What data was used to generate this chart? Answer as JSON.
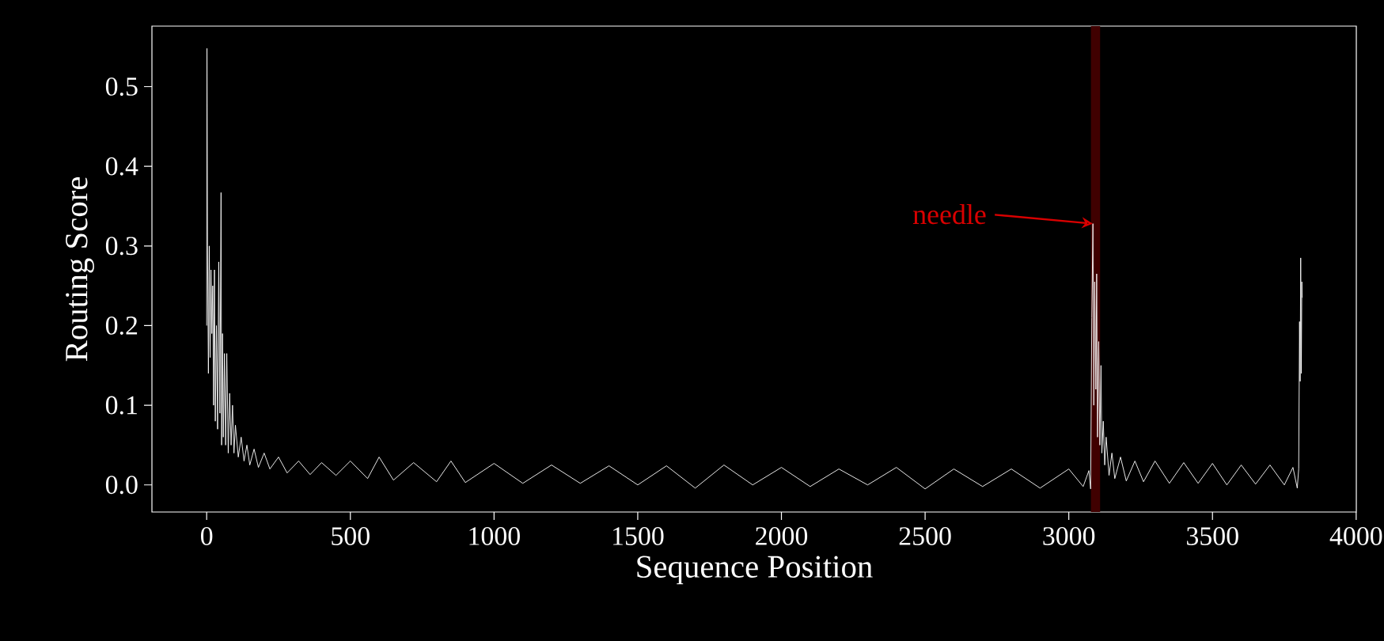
{
  "chart_data": {
    "type": "line",
    "xlabel": "Sequence Position",
    "ylabel": "Routing Score",
    "xlim": [
      -190.5,
      4000.5
    ],
    "ylim": [
      -0.034,
      0.576
    ],
    "xticks": [
      0,
      500,
      1000,
      1500,
      2000,
      2500,
      3000,
      3500,
      4000
    ],
    "yticks": [
      {
        "value": 0,
        "label": "0.0"
      },
      0.1,
      0.2,
      0.3,
      0.4,
      0.5
    ],
    "grid": false,
    "marker": "none",
    "line_style": "solid",
    "bands": [
      {
        "axis": "x",
        "from": 3077,
        "to": 3109,
        "color": "#400000"
      }
    ],
    "annotations": [
      {
        "text": "needle",
        "x": 3084,
        "y": 0.328
      }
    ],
    "series": [
      {
        "color": "#ffffff",
        "x": [
          0,
          1,
          3,
          6,
          9,
          12,
          15,
          18,
          21,
          24,
          27,
          30,
          34,
          38,
          42,
          46,
          50,
          52,
          55,
          58,
          62,
          66,
          70,
          75,
          80,
          85,
          90,
          95,
          100,
          110,
          120,
          130,
          140,
          150,
          165,
          180,
          200,
          220,
          250,
          280,
          320,
          360,
          400,
          450,
          500,
          560,
          600,
          650,
          720,
          800,
          850,
          900,
          1000,
          1100,
          1200,
          1300,
          1400,
          1500,
          1600,
          1700,
          1800,
          1900,
          2000,
          2100,
          2200,
          2300,
          2400,
          2500,
          2600,
          2700,
          2800,
          2900,
          3000,
          3050,
          3070,
          3076,
          3080,
          3084,
          3087,
          3090,
          3094,
          3097,
          3100,
          3104,
          3108,
          3112,
          3115,
          3120,
          3125,
          3130,
          3140,
          3150,
          3160,
          3180,
          3200,
          3230,
          3260,
          3300,
          3350,
          3400,
          3450,
          3500,
          3550,
          3600,
          3650,
          3700,
          3750,
          3780,
          3795,
          3800,
          3803,
          3805,
          3807,
          3809,
          3811,
          3812
        ],
        "values": [
          0.2,
          0.548,
          0.3,
          0.14,
          0.3,
          0.16,
          0.27,
          0.19,
          0.25,
          0.1,
          0.27,
          0.08,
          0.2,
          0.07,
          0.28,
          0.09,
          0.367,
          0.05,
          0.19,
          0.06,
          0.165,
          0.05,
          0.165,
          0.04,
          0.115,
          0.05,
          0.1,
          0.04,
          0.075,
          0.035,
          0.06,
          0.03,
          0.05,
          0.025,
          0.045,
          0.022,
          0.04,
          0.02,
          0.035,
          0.015,
          0.03,
          0.013,
          0.028,
          0.012,
          0.03,
          0.008,
          0.035,
          0.006,
          0.028,
          0.004,
          0.03,
          0.003,
          0.027,
          0.002,
          0.025,
          0.002,
          0.024,
          0.0,
          0.024,
          -0.004,
          0.025,
          0.0,
          0.022,
          -0.002,
          0.02,
          0.0,
          0.022,
          -0.005,
          0.02,
          -0.002,
          0.02,
          -0.004,
          0.02,
          -0.002,
          0.018,
          -0.005,
          0.21,
          0.328,
          0.1,
          0.255,
          0.12,
          0.265,
          0.06,
          0.18,
          0.05,
          0.15,
          0.04,
          0.08,
          0.025,
          0.06,
          0.012,
          0.04,
          0.008,
          0.035,
          0.005,
          0.03,
          0.004,
          0.03,
          0.002,
          0.028,
          0.002,
          0.027,
          0.0,
          0.025,
          0.001,
          0.025,
          0.0,
          0.022,
          -0.004,
          0.02,
          0.205,
          0.13,
          0.285,
          0.14,
          0.255,
          0.235
        ]
      }
    ]
  }
}
